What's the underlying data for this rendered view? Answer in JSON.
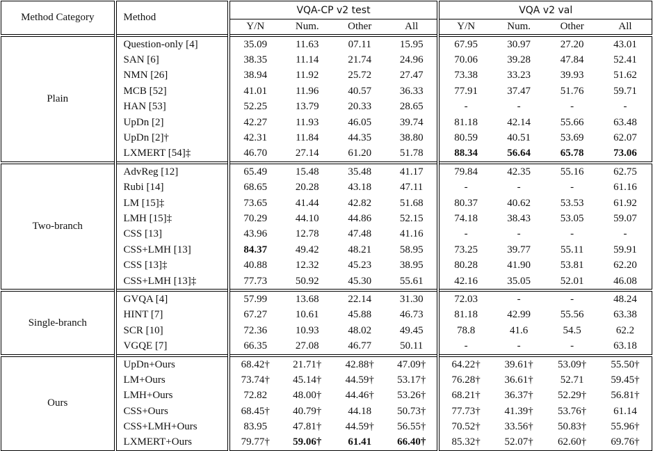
{
  "header": {
    "method_category": "Method Category",
    "method": "Method",
    "groups": [
      "VQA-CP v2 test",
      "VQA v2 val"
    ],
    "columns": [
      "Y/N",
      "Num.",
      "Other",
      "All",
      "Y/N",
      "Num.",
      "Other",
      "All"
    ]
  },
  "groups": [
    {
      "name": "Plain",
      "rows": [
        {
          "method": "Question-only [4]",
          "values": [
            "35.09",
            "11.63",
            "07.11",
            "15.95",
            "67.95",
            "30.97",
            "27.20",
            "43.01"
          ]
        },
        {
          "method": "SAN [6]",
          "values": [
            "38.35",
            "11.14",
            "21.74",
            "24.96",
            "70.06",
            "39.28",
            "47.84",
            "52.41"
          ]
        },
        {
          "method": "NMN [26]",
          "values": [
            "38.94",
            "11.92",
            "25.72",
            "27.47",
            "73.38",
            "33.23",
            "39.93",
            "51.62"
          ]
        },
        {
          "method": "MCB [52]",
          "values": [
            "41.01",
            "11.96",
            "40.57",
            "36.33",
            "77.91",
            "37.47",
            "51.76",
            "59.71"
          ]
        },
        {
          "method": "HAN [53]",
          "values": [
            "52.25",
            "13.79",
            "20.33",
            "28.65",
            "-",
            "-",
            "-",
            "-"
          ]
        },
        {
          "method": "UpDn [2]",
          "values": [
            "42.27",
            "11.93",
            "46.05",
            "39.74",
            "81.18",
            "42.14",
            "55.66",
            "63.48"
          ]
        },
        {
          "method": "UpDn [2]†",
          "values": [
            "42.31",
            "11.84",
            "44.35",
            "38.80",
            "80.59",
            "40.51",
            "53.69",
            "62.07"
          ]
        },
        {
          "method": "LXMERT [54]‡",
          "values": [
            "46.70",
            "27.14",
            "61.20",
            "51.78",
            "88.34",
            "56.64",
            "65.78",
            "73.06"
          ],
          "bold": [
            4,
            5,
            6,
            7
          ]
        }
      ]
    },
    {
      "name": "Two-branch",
      "rows": [
        {
          "method": "AdvReg [12]",
          "values": [
            "65.49",
            "15.48",
            "35.48",
            "41.17",
            "79.84",
            "42.35",
            "55.16",
            "62.75"
          ]
        },
        {
          "method": "Rubi [14]",
          "values": [
            "68.65",
            "20.28",
            "43.18",
            "47.11",
            "-",
            "-",
            "-",
            "61.16"
          ]
        },
        {
          "method": "LM [15]‡",
          "values": [
            "73.65",
            "41.44",
            "42.82",
            "51.68",
            "80.37",
            "40.62",
            "53.53",
            "61.92"
          ]
        },
        {
          "method": "LMH [15]‡",
          "values": [
            "70.29",
            "44.10",
            "44.86",
            "52.15",
            "74.18",
            "38.43",
            "53.05",
            "59.07"
          ]
        },
        {
          "method": "CSS [13]",
          "values": [
            "43.96",
            "12.78",
            "47.48",
            "41.16",
            "-",
            "-",
            "-",
            "-"
          ]
        },
        {
          "method": "CSS+LMH [13]",
          "values": [
            "84.37",
            "49.42",
            "48.21",
            "58.95",
            "73.25",
            "39.77",
            "55.11",
            "59.91"
          ],
          "bold": [
            0
          ]
        },
        {
          "method": "CSS [13]‡",
          "values": [
            "40.88",
            "12.32",
            "45.23",
            "38.95",
            "80.28",
            "41.90",
            "53.81",
            "62.20"
          ]
        },
        {
          "method": "CSS+LMH [13]‡",
          "values": [
            "77.73",
            "50.92",
            "45.30",
            "55.61",
            "42.16",
            "35.05",
            "52.01",
            "46.08"
          ]
        }
      ]
    },
    {
      "name": "Single-branch",
      "rows": [
        {
          "method": "GVQA [4]",
          "values": [
            "57.99",
            "13.68",
            "22.14",
            "31.30",
            "72.03",
            "-",
            "-",
            "48.24"
          ]
        },
        {
          "method": "HINT [7]",
          "values": [
            "67.27",
            "10.61",
            "45.88",
            "46.73",
            "81.18",
            "42.99",
            "55.56",
            "63.38"
          ]
        },
        {
          "method": "SCR [10]",
          "values": [
            "72.36",
            "10.93",
            "48.02",
            "49.45",
            "78.8",
            "41.6",
            "54.5",
            "62.2"
          ]
        },
        {
          "method": "VGQE [7]",
          "values": [
            "66.35",
            "27.08",
            "46.77",
            "50.11",
            "-",
            "-",
            "-",
            "63.18"
          ]
        }
      ]
    },
    {
      "name": "Ours",
      "rows": [
        {
          "method": "UpDn+Ours",
          "values": [
            "68.42†",
            "21.71†",
            "42.88†",
            "47.09†",
            "64.22†",
            "39.61†",
            "53.09†",
            "55.50†"
          ]
        },
        {
          "method": "LM+Ours",
          "values": [
            "73.74†",
            "45.14†",
            "44.59†",
            "53.17†",
            "76.28†",
            "36.61†",
            "52.71",
            "59.45†"
          ]
        },
        {
          "method": "LMH+Ours",
          "values": [
            "72.82",
            "48.00†",
            "44.46†",
            "53.26†",
            "68.21†",
            "36.37†",
            "52.29†",
            "56.81†"
          ]
        },
        {
          "method": "CSS+Ours",
          "values": [
            "68.45†",
            "40.79†",
            "44.18",
            "50.73†",
            "77.73†",
            "41.39†",
            "53.76†",
            "61.14"
          ]
        },
        {
          "method": "CSS+LMH+Ours",
          "values": [
            "83.95",
            "47.81†",
            "44.59†",
            "56.55†",
            "70.52†",
            "33.56†",
            "50.83†",
            "55.96†"
          ]
        },
        {
          "method": "LXMERT+Ours",
          "values": [
            "79.77†",
            "59.06†",
            "61.41",
            "66.40†",
            "85.32†",
            "52.07†",
            "62.60†",
            "69.76†"
          ],
          "bold": [
            1,
            2,
            3
          ]
        }
      ]
    }
  ]
}
